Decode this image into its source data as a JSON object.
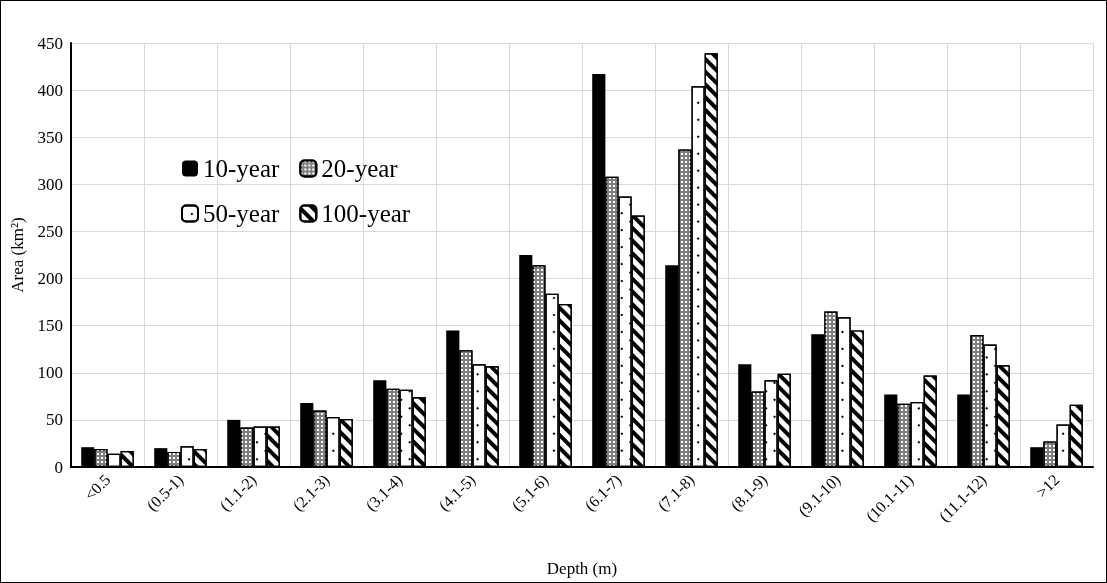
{
  "chart_data": {
    "type": "bar",
    "xlabel": "Depth (m)",
    "ylabel": "Area (km²)",
    "categories": [
      "<0.5",
      "(0.5-1)",
      "(1.1-2)",
      "(2.1-3)",
      "(3.1-4)",
      "(4.1-5)",
      "(5.1-6)",
      "(6.1-7)",
      "(7.1-8)",
      "(8.1-9)",
      "(9.1-10)",
      "(10.1-11)",
      "(11.1-12)",
      ">12"
    ],
    "series": [
      {
        "name": "10-year",
        "color": "#000000",
        "values": [
          21,
          20,
          50,
          68,
          92,
          145,
          225,
          417,
          214,
          109,
          141,
          77,
          77,
          21
        ]
      },
      {
        "name": "20-year",
        "color": "#7f7f7f",
        "values": [
          19,
          16,
          42,
          60,
          83,
          124,
          214,
          308,
          337,
          80,
          165,
          67,
          140,
          27
        ]
      },
      {
        "name": "50-year",
        "color": "#ffffff",
        "values": [
          14,
          22,
          43,
          53,
          82,
          109,
          184,
          287,
          404,
          92,
          159,
          69,
          130,
          45
        ]
      },
      {
        "name": "100-year",
        "color": "#ffffff",
        "values": [
          17,
          19,
          43,
          51,
          74,
          107,
          173,
          267,
          439,
          99,
          145,
          97,
          108,
          66
        ]
      }
    ],
    "ylim": [
      0,
      450
    ],
    "yticks": [
      0,
      50,
      100,
      150,
      200,
      250,
      300,
      350,
      400,
      450
    ],
    "grid": true,
    "legend": "top left"
  }
}
